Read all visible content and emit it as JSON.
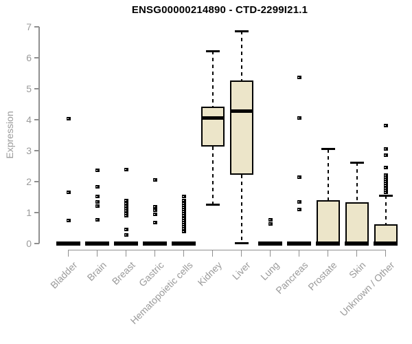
{
  "page": {
    "background": "#ffffff"
  },
  "chart_data": {
    "type": "boxplot",
    "title": "ENSG00000214890 - CTD-2299I21.1",
    "ylabel": "Expression",
    "xlabel": "",
    "ylim": [
      0,
      7
    ],
    "yticks": [
      0,
      1,
      2,
      3,
      4,
      5,
      6,
      7
    ],
    "grid": false,
    "legend": false,
    "colors": {
      "box_fill": "#ece5c9",
      "box_border": "#000000",
      "median": "#000000",
      "whisker": "#000000",
      "outlier": "#000000",
      "axis": "#8f8f8f",
      "tick_text": "#9a9a9a",
      "title_text": "#000000"
    },
    "categories": [
      "Bladder",
      "Brain",
      "Breast",
      "Gastric",
      "Hematopoietic cells",
      "Kidney",
      "Liver",
      "Lung",
      "Pancreas",
      "Prostate",
      "Skin",
      "Unknown / Other"
    ],
    "series": [
      {
        "name": "Bladder",
        "whisker_low": 0,
        "q1": 0,
        "median": 0,
        "q3": 0,
        "whisker_high": 0,
        "outliers": [
          4.03,
          1.65,
          0.75
        ]
      },
      {
        "name": "Brain",
        "whisker_low": 0,
        "q1": 0,
        "median": 0,
        "q3": 0,
        "whisker_high": 0,
        "outliers": [
          2.37,
          1.83,
          1.52,
          1.35,
          1.22,
          0.77
        ]
      },
      {
        "name": "Breast",
        "whisker_low": 0,
        "q1": 0,
        "median": 0,
        "q3": 0,
        "whisker_high": 0,
        "outliers": [
          2.4,
          1.39,
          1.3,
          1.21,
          1.13,
          1.05,
          0.97,
          0.9,
          0.46,
          0.27
        ]
      },
      {
        "name": "Gastric",
        "whisker_low": 0,
        "q1": 0,
        "median": 0,
        "q3": 0,
        "whisker_high": 0,
        "outliers": [
          2.06,
          1.2,
          1.07,
          0.94,
          0.67
        ]
      },
      {
        "name": "Hematopoietic cells",
        "whisker_low": 0,
        "q1": 0,
        "median": 0,
        "q3": 0,
        "whisker_high": 0,
        "outliers": [
          1.53,
          1.38,
          1.31,
          1.24,
          1.17,
          1.1,
          1.03,
          0.96,
          0.89,
          0.82,
          0.75,
          0.68,
          0.61,
          0.54,
          0.47,
          0.4
        ]
      },
      {
        "name": "Kidney",
        "whisker_low": 1.25,
        "q1": 3.13,
        "median": 4.05,
        "q3": 4.43,
        "whisker_high": 6.22,
        "outliers": []
      },
      {
        "name": "Liver",
        "whisker_low": 0.02,
        "q1": 2.22,
        "median": 4.27,
        "q3": 5.27,
        "whisker_high": 6.86,
        "outliers": []
      },
      {
        "name": "Lung",
        "whisker_low": 0,
        "q1": 0,
        "median": 0,
        "q3": 0,
        "whisker_high": 0,
        "outliers": [
          0.77,
          0.64
        ]
      },
      {
        "name": "Pancreas",
        "whisker_low": 0,
        "q1": 0,
        "median": 0,
        "q3": 0,
        "whisker_high": 0,
        "outliers": [
          5.37,
          4.05,
          2.15,
          1.35,
          1.09
        ]
      },
      {
        "name": "Prostate",
        "whisker_low": 0,
        "q1": 0,
        "median": 0,
        "q3": 1.4,
        "whisker_high": 3.05,
        "outliers": []
      },
      {
        "name": "Skin",
        "whisker_low": 0,
        "q1": 0,
        "median": 0,
        "q3": 1.34,
        "whisker_high": 2.62,
        "outliers": []
      },
      {
        "name": "Unknown / Other",
        "whisker_low": 0,
        "q1": 0,
        "median": 0,
        "q3": 0.62,
        "whisker_high": 1.55,
        "outliers": [
          3.81,
          3.06,
          2.86,
          2.46,
          2.22,
          2.15,
          2.08,
          2.01,
          1.94,
          1.87,
          1.8,
          1.73,
          1.66
        ]
      }
    ]
  }
}
